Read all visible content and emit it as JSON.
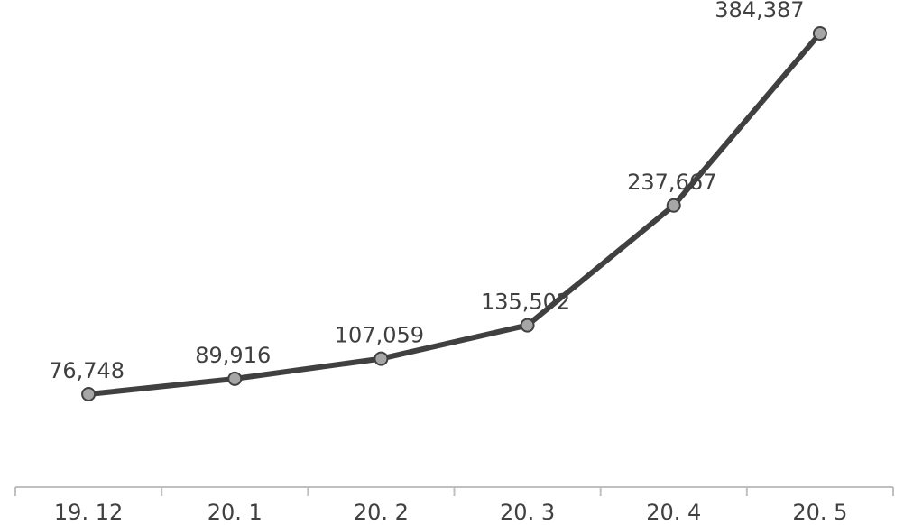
{
  "chart_data": {
    "type": "line",
    "categories": [
      "19. 12",
      "20. 1",
      "20. 2",
      "20. 3",
      "20. 4",
      "20. 5"
    ],
    "series": [
      {
        "values": [
          76748,
          89916,
          107059,
          135502,
          237667,
          384387
        ],
        "labels": [
          "76,748",
          "89,916",
          "107,059",
          "135,502",
          "237,667",
          "384,387"
        ]
      }
    ],
    "title": "",
    "xlabel": "",
    "ylabel": "",
    "grid": false,
    "legend": "none",
    "colors": {
      "line": "#404040",
      "marker_fill": "#a6a6a6",
      "axis": "#bfbfbf",
      "text": "#404040"
    }
  }
}
